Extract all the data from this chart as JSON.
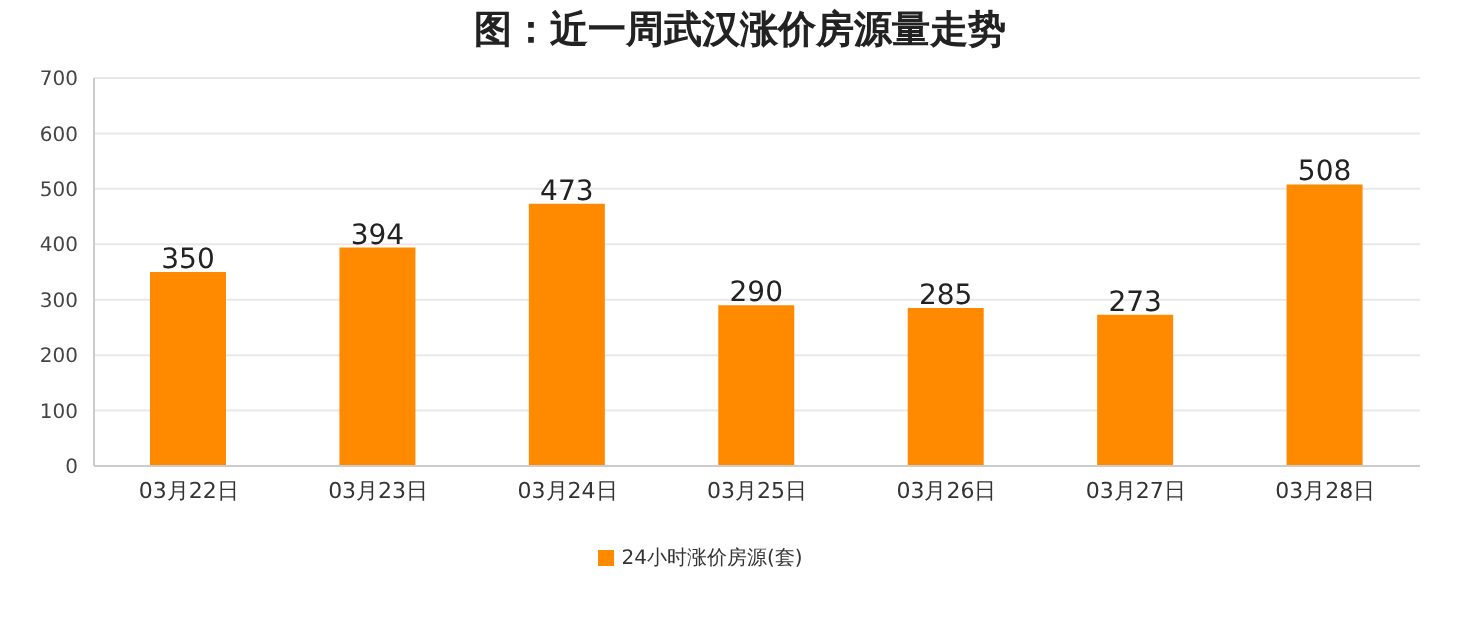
{
  "chart_data": {
    "type": "bar",
    "title": "图：近一周武汉涨价房源量走势",
    "categories": [
      "03月22日",
      "03月23日",
      "03月24日",
      "03月25日",
      "03月26日",
      "03月27日",
      "03月28日"
    ],
    "series": [
      {
        "name": "24小时涨价房源(套)",
        "color": "#ff8a00",
        "values": [
          350,
          394,
          473,
          290,
          285,
          273,
          508
        ]
      }
    ],
    "ylim": [
      0,
      700
    ],
    "yticks": [
      0,
      100,
      200,
      300,
      400,
      500,
      600,
      700
    ],
    "grid": "y",
    "legend": "bottom",
    "data_labels": true
  }
}
